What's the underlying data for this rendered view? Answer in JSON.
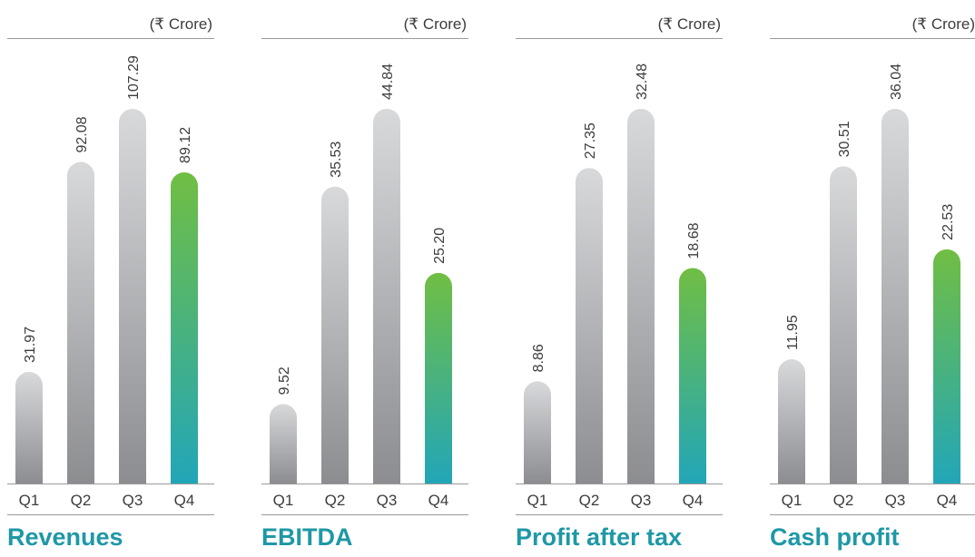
{
  "chart_data": [
    {
      "type": "bar",
      "title": "Revenues",
      "unit": "(₹ Crore)",
      "categories": [
        "Q1",
        "Q2",
        "Q3",
        "Q4"
      ],
      "values": [
        31.97,
        92.08,
        107.29,
        89.12
      ],
      "value_labels": [
        "31.97",
        "92.08",
        "107.29",
        "89.12"
      ],
      "colors": [
        [
          "#d8d9db",
          "#8c8d91"
        ],
        [
          "#d8d9db",
          "#8c8d91"
        ],
        [
          "#d8d9db",
          "#8c8d91"
        ],
        [
          "#70be43",
          "#22a6b8"
        ]
      ]
    },
    {
      "type": "bar",
      "title": "EBITDA",
      "unit": "(₹ Crore)",
      "categories": [
        "Q1",
        "Q2",
        "Q3",
        "Q4"
      ],
      "values": [
        9.52,
        35.53,
        44.84,
        25.2
      ],
      "value_labels": [
        "9.52",
        "35.53",
        "44.84",
        "25.20"
      ],
      "colors": [
        [
          "#d8d9db",
          "#8c8d91"
        ],
        [
          "#d8d9db",
          "#8c8d91"
        ],
        [
          "#d8d9db",
          "#8c8d91"
        ],
        [
          "#70be43",
          "#22a6b8"
        ]
      ]
    },
    {
      "type": "bar",
      "title": "Profit after tax",
      "unit": "(₹ Crore)",
      "categories": [
        "Q1",
        "Q2",
        "Q3",
        "Q4"
      ],
      "values": [
        8.86,
        27.35,
        32.48,
        18.68
      ],
      "value_labels": [
        "8.86",
        "27.35",
        "32.48",
        "18.68"
      ],
      "colors": [
        [
          "#d8d9db",
          "#8c8d91"
        ],
        [
          "#d8d9db",
          "#8c8d91"
        ],
        [
          "#d8d9db",
          "#8c8d91"
        ],
        [
          "#70be43",
          "#22a6b8"
        ]
      ]
    },
    {
      "type": "bar",
      "title": "Cash profit",
      "unit": "(₹ Crore)",
      "categories": [
        "Q1",
        "Q2",
        "Q3",
        "Q4"
      ],
      "values": [
        11.95,
        30.51,
        36.04,
        22.53
      ],
      "value_labels": [
        "11.95",
        "30.51",
        "36.04",
        "22.53"
      ],
      "colors": [
        [
          "#d8d9db",
          "#8c8d91"
        ],
        [
          "#d8d9db",
          "#8c8d91"
        ],
        [
          "#d8d9db",
          "#8c8d91"
        ],
        [
          "#70be43",
          "#22a6b8"
        ]
      ]
    }
  ]
}
